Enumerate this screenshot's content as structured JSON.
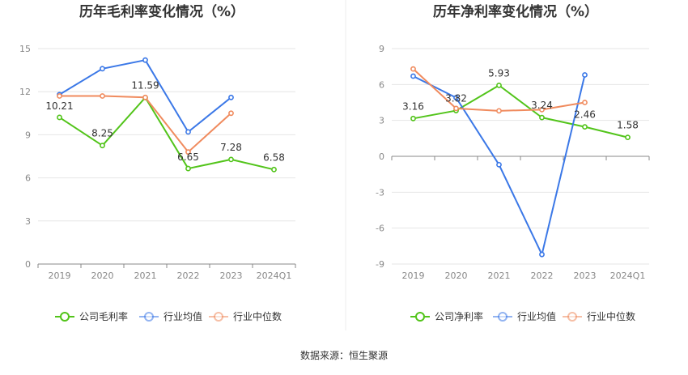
{
  "source_label": "数据来源：",
  "source_name": "恒生聚源",
  "chart_data": [
    {
      "type": "line",
      "title": "历年毛利率变化情况（%）",
      "categories": [
        "2019",
        "2020",
        "2021",
        "2022",
        "2023",
        "2024Q1"
      ],
      "ylim": [
        0,
        15
      ],
      "yticks": [
        0,
        3,
        6,
        9,
        12,
        15
      ],
      "grid": true,
      "legend_position": "bottom",
      "series": [
        {
          "name": "公司毛利率",
          "color": "#52c41a",
          "values": [
            10.21,
            8.25,
            11.59,
            6.65,
            7.28,
            6.58
          ],
          "labels": [
            "10.21",
            "8.25",
            "11.59",
            "6.65",
            "7.28",
            "6.58"
          ]
        },
        {
          "name": "行业均值",
          "color": "#3b78e7",
          "values": [
            11.8,
            13.6,
            14.2,
            9.2,
            11.6,
            null
          ],
          "labels": []
        },
        {
          "name": "行业中位数",
          "color": "#f08b5e",
          "values": [
            11.7,
            11.7,
            11.6,
            7.8,
            10.5,
            null
          ],
          "labels": []
        }
      ]
    },
    {
      "type": "line",
      "title": "历年净利率变化情况（%）",
      "categories": [
        "2019",
        "2020",
        "2021",
        "2022",
        "2023",
        "2024Q1"
      ],
      "ylim": [
        -9,
        9
      ],
      "yticks": [
        -9,
        -6,
        -3,
        0,
        3,
        6,
        9
      ],
      "grid": true,
      "legend_position": "bottom",
      "series": [
        {
          "name": "公司净利率",
          "color": "#52c41a",
          "values": [
            3.16,
            3.82,
            5.93,
            3.24,
            2.46,
            1.58
          ],
          "labels": [
            "3.16",
            "3.82",
            "5.93",
            "3.24",
            "2.46",
            "1.58"
          ]
        },
        {
          "name": "行业均值",
          "color": "#3b78e7",
          "values": [
            6.7,
            4.9,
            -0.7,
            -8.2,
            6.8,
            null
          ],
          "labels": []
        },
        {
          "name": "行业中位数",
          "color": "#f08b5e",
          "values": [
            7.3,
            4.0,
            3.8,
            3.9,
            4.5,
            null
          ],
          "labels": []
        }
      ]
    }
  ]
}
